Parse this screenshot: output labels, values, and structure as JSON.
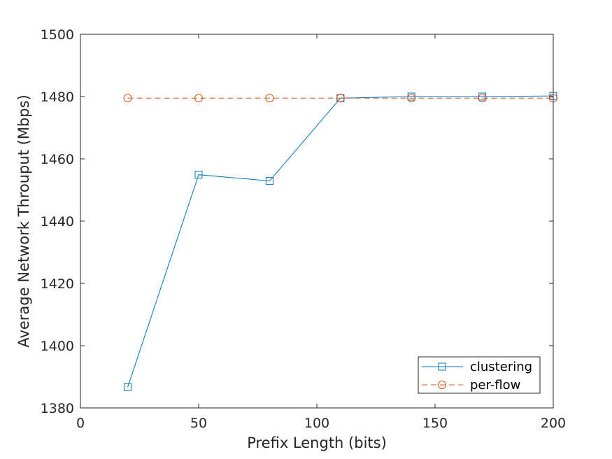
{
  "chart_data": {
    "type": "line",
    "title": "",
    "xlabel": "Prefix Length (bits)",
    "ylabel": "Average Network Throuput (Mbps)",
    "xlim": [
      0,
      200
    ],
    "ylim": [
      1380,
      1500
    ],
    "xticks": [
      0,
      50,
      100,
      150,
      200
    ],
    "yticks": [
      1380,
      1400,
      1420,
      1440,
      1460,
      1480,
      1500
    ],
    "grid": false,
    "legend_position": "bottom-right",
    "series": [
      {
        "name": "clustering",
        "color": "#0072bd",
        "line_style": "solid",
        "marker": "square",
        "x": [
          20,
          50,
          80,
          110,
          140,
          170,
          200
        ],
        "y": [
          1386.7,
          1454.9,
          1452.9,
          1479.5,
          1480.0,
          1480.0,
          1480.2
        ]
      },
      {
        "name": "per-flow",
        "color": "#d95319",
        "line_style": "dashed",
        "marker": "circle",
        "x": [
          20,
          50,
          80,
          110,
          140,
          170,
          200
        ],
        "y": [
          1479.5,
          1479.5,
          1479.5,
          1479.5,
          1479.5,
          1479.5,
          1479.5
        ]
      }
    ]
  }
}
